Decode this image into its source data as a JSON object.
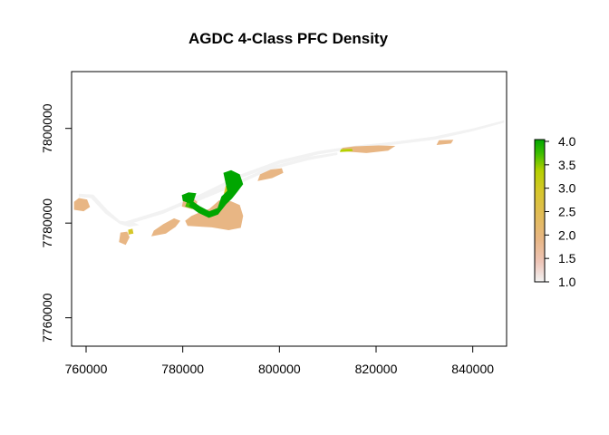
{
  "chart_data": {
    "type": "heatmap",
    "title": "AGDC 4-Class PFC Density",
    "xlabel": "",
    "ylabel": "",
    "xlim": [
      757000,
      847000
    ],
    "ylim": [
      7754000,
      7812000
    ],
    "x_ticks": [
      760000,
      780000,
      800000,
      820000,
      840000
    ],
    "x_tick_labels": [
      "760000",
      "780000",
      "800000",
      "820000",
      "840000"
    ],
    "y_ticks": [
      7760000,
      7780000,
      7800000
    ],
    "y_tick_labels": [
      "7760000",
      "7780000",
      "7800000"
    ],
    "grid": false,
    "legend": {
      "placement": "right",
      "min": 1.0,
      "max": 4.0,
      "ticks": [
        1.0,
        1.5,
        2.0,
        2.5,
        3.0,
        3.5,
        4.0
      ],
      "tick_labels": [
        "1.0",
        "1.5",
        "2.0",
        "2.5",
        "3.0",
        "3.5",
        "4.0"
      ],
      "colors": [
        "#f2f2f2",
        "#eec5b8",
        "#e8b684",
        "#e1bc54",
        "#d6c72a",
        "#b5d000",
        "#3ebe00",
        "#00a600"
      ]
    },
    "regions": [
      {
        "class": 1.0,
        "points": [
          [
            768000,
            7779500
          ],
          [
            776000,
            7782000
          ],
          [
            784000,
            7785500
          ],
          [
            792000,
            7789500
          ],
          [
            800000,
            7792500
          ],
          [
            808000,
            7794500
          ],
          [
            816000,
            7795800
          ],
          [
            824000,
            7796600
          ],
          [
            832000,
            7797600
          ],
          [
            840000,
            7799400
          ],
          [
            846500,
            7801200
          ],
          [
            846500,
            7801700
          ],
          [
            840000,
            7800000
          ],
          [
            832000,
            7798300
          ],
          [
            824000,
            7797200
          ],
          [
            816000,
            7796400
          ],
          [
            808000,
            7795200
          ],
          [
            800000,
            7793300
          ],
          [
            792000,
            7790300
          ],
          [
            784000,
            7786300
          ],
          [
            776000,
            7782800
          ],
          [
            768000,
            7780300
          ]
        ]
      },
      {
        "class": 1.0,
        "points": [
          [
            758500,
            7785500
          ],
          [
            761000,
            7785300
          ],
          [
            764000,
            7782000
          ],
          [
            767000,
            7779800
          ],
          [
            769000,
            7779200
          ],
          [
            771000,
            7779600
          ],
          [
            770000,
            7780100
          ],
          [
            767000,
            7780500
          ],
          [
            764500,
            7782700
          ],
          [
            761500,
            7786000
          ],
          [
            758500,
            7786200
          ]
        ]
      },
      {
        "class": 1.0,
        "points": [
          [
            780500,
            7783500
          ],
          [
            790000,
            7787500
          ],
          [
            798000,
            7791200
          ],
          [
            806000,
            7793300
          ],
          [
            812000,
            7794400
          ],
          [
            812000,
            7794900
          ],
          [
            806000,
            7794000
          ],
          [
            798000,
            7791900
          ],
          [
            790000,
            7788300
          ],
          [
            780500,
            7784300
          ]
        ]
      },
      {
        "class": 2.0,
        "points": [
          [
            757500,
            7782800
          ],
          [
            759500,
            7782500
          ],
          [
            760800,
            7783400
          ],
          [
            760200,
            7785000
          ],
          [
            758500,
            7785300
          ],
          [
            757500,
            7784500
          ]
        ]
      },
      {
        "class": 2.0,
        "points": [
          [
            766800,
            7776000
          ],
          [
            768200,
            7775400
          ],
          [
            769000,
            7777000
          ],
          [
            768500,
            7778200
          ],
          [
            767100,
            7778000
          ]
        ]
      },
      {
        "class": 2.0,
        "points": [
          [
            773500,
            7777200
          ],
          [
            776500,
            7777800
          ],
          [
            778500,
            7779200
          ],
          [
            779500,
            7780500
          ],
          [
            778200,
            7781000
          ],
          [
            776000,
            7779800
          ],
          [
            774000,
            7778400
          ]
        ]
      },
      {
        "class": 2.0,
        "points": [
          [
            781000,
            7779400
          ],
          [
            786000,
            7779100
          ],
          [
            789500,
            7778500
          ],
          [
            792000,
            7779000
          ],
          [
            792500,
            7781500
          ],
          [
            791800,
            7783800
          ],
          [
            790000,
            7784600
          ],
          [
            787500,
            7784800
          ],
          [
            785500,
            7783000
          ],
          [
            783800,
            7782400
          ],
          [
            781800,
            7781500
          ],
          [
            780500,
            7780500
          ]
        ]
      },
      {
        "class": 2.0,
        "points": [
          [
            779800,
            7783500
          ],
          [
            782500,
            7782800
          ],
          [
            783000,
            7784500
          ],
          [
            781500,
            7785800
          ],
          [
            780200,
            7785200
          ]
        ]
      },
      {
        "class": 2.0,
        "points": [
          [
            795500,
            7788900
          ],
          [
            798500,
            7789500
          ],
          [
            800800,
            7790600
          ],
          [
            800500,
            7791600
          ],
          [
            798200,
            7791300
          ],
          [
            796000,
            7790300
          ]
        ]
      },
      {
        "class": 2.0,
        "points": [
          [
            812800,
            7795200
          ],
          [
            818000,
            7794800
          ],
          [
            822500,
            7795300
          ],
          [
            824000,
            7796300
          ],
          [
            820500,
            7796400
          ],
          [
            815500,
            7796200
          ],
          [
            813000,
            7795900
          ]
        ]
      },
      {
        "class": 2.0,
        "points": [
          [
            832500,
            7796500
          ],
          [
            835500,
            7796800
          ],
          [
            836000,
            7797600
          ],
          [
            833000,
            7797500
          ]
        ]
      },
      {
        "class": 2.5,
        "points": [
          [
            768800,
            7777600
          ],
          [
            769800,
            7777800
          ],
          [
            769600,
            7778800
          ],
          [
            768700,
            7778600
          ]
        ]
      },
      {
        "class": 2.5,
        "points": [
          [
            788500,
            7786200
          ],
          [
            790500,
            7786000
          ],
          [
            790800,
            7787600
          ],
          [
            788900,
            7787900
          ]
        ]
      },
      {
        "class": 3.0,
        "points": [
          [
            812500,
            7795000
          ],
          [
            815200,
            7795200
          ],
          [
            815000,
            7795700
          ],
          [
            812700,
            7795600
          ]
        ]
      },
      {
        "class": 3.5,
        "points": [
          [
            780500,
            7783500
          ],
          [
            782000,
            7783000
          ],
          [
            782400,
            7784400
          ],
          [
            781000,
            7784900
          ]
        ]
      },
      {
        "class": 4.0,
        "points": [
          [
            781800,
            7784800
          ],
          [
            783500,
            7783600
          ],
          [
            785500,
            7782500
          ],
          [
            787200,
            7783200
          ],
          [
            788000,
            7785600
          ],
          [
            789200,
            7786800
          ],
          [
            788400,
            7790600
          ],
          [
            790000,
            7791200
          ],
          [
            791800,
            7790300
          ],
          [
            792500,
            7788200
          ],
          [
            791300,
            7786600
          ],
          [
            790200,
            7785200
          ],
          [
            789000,
            7784000
          ],
          [
            787300,
            7781800
          ],
          [
            785400,
            7781100
          ],
          [
            783200,
            7782200
          ],
          [
            781300,
            7783600
          ]
        ]
      },
      {
        "class": 4.0,
        "points": [
          [
            780000,
            7784700
          ],
          [
            782000,
            7783900
          ],
          [
            782800,
            7786300
          ],
          [
            781200,
            7786500
          ],
          [
            779800,
            7785900
          ]
        ]
      }
    ]
  }
}
